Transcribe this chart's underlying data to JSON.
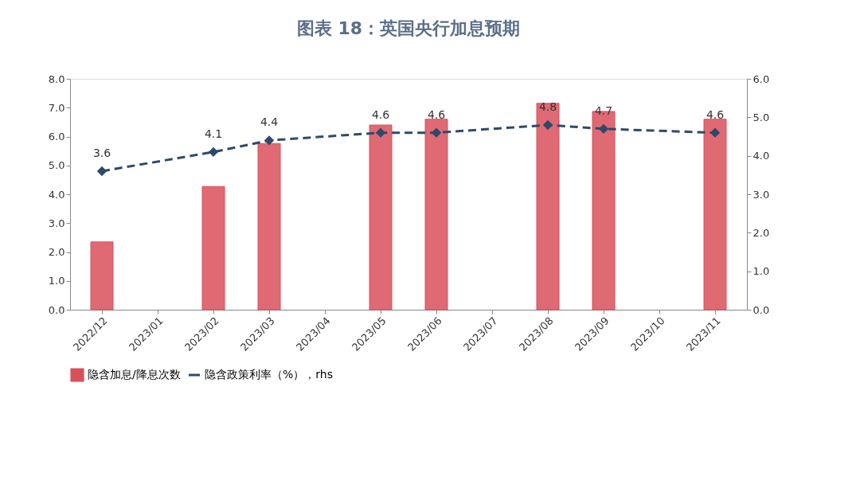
{
  "chart_data": {
    "type": "bar",
    "title": "图表 18：英国央行加息预期",
    "categories": [
      "2022/12",
      "2023/01",
      "2023/02",
      "2023/03",
      "2023/04",
      "2023/05",
      "2023/06",
      "2023/07",
      "2023/08",
      "2023/09",
      "2023/10",
      "2023/11"
    ],
    "series": [
      {
        "name": "隐含加息/降息次数",
        "color": "#d9505a",
        "values": [
          2.35,
          null,
          4.27,
          5.76,
          null,
          6.4,
          6.6,
          null,
          7.15,
          6.87,
          null,
          6.6
        ]
      },
      {
        "name": "隐含政策利率（%），rhs",
        "type": "line",
        "axis": "y2",
        "color": "#2e4a6b",
        "marker": "diamond",
        "line_style": "dashed",
        "values": [
          3.6,
          null,
          4.1,
          4.4,
          null,
          4.6,
          4.6,
          null,
          4.8,
          4.7,
          null,
          4.6
        ],
        "value_labels": [
          "3.6",
          null,
          "4.1",
          "4.4",
          null,
          "4.6",
          "4.6",
          null,
          "4.8",
          "4.7",
          null,
          "4.6"
        ]
      }
    ],
    "ylim": [
      0,
      8
    ],
    "yticks": [
      {
        "value": 0,
        "label": "0.0"
      },
      {
        "value": 1,
        "label": "1.0"
      },
      {
        "value": 2,
        "label": "2.0"
      },
      {
        "value": 3,
        "label": "3.0"
      },
      {
        "value": 4,
        "label": "4.0"
      },
      {
        "value": 5,
        "label": "5.0"
      },
      {
        "value": 6,
        "label": "6.0"
      },
      {
        "value": 7,
        "label": "7.0"
      },
      {
        "value": 8,
        "label": "8.0"
      }
    ],
    "y2lim": [
      0,
      6
    ],
    "y2ticks": [
      {
        "value": 0,
        "label": "0.0"
      },
      {
        "value": 1,
        "label": "1.0"
      },
      {
        "value": 2,
        "label": "2.0"
      },
      {
        "value": 3,
        "label": "3.0"
      },
      {
        "value": 4,
        "label": "4.0"
      },
      {
        "value": 5,
        "label": "5.0"
      },
      {
        "value": 6,
        "label": "6.0"
      }
    ],
    "grid": false,
    "legend": "bottom"
  }
}
